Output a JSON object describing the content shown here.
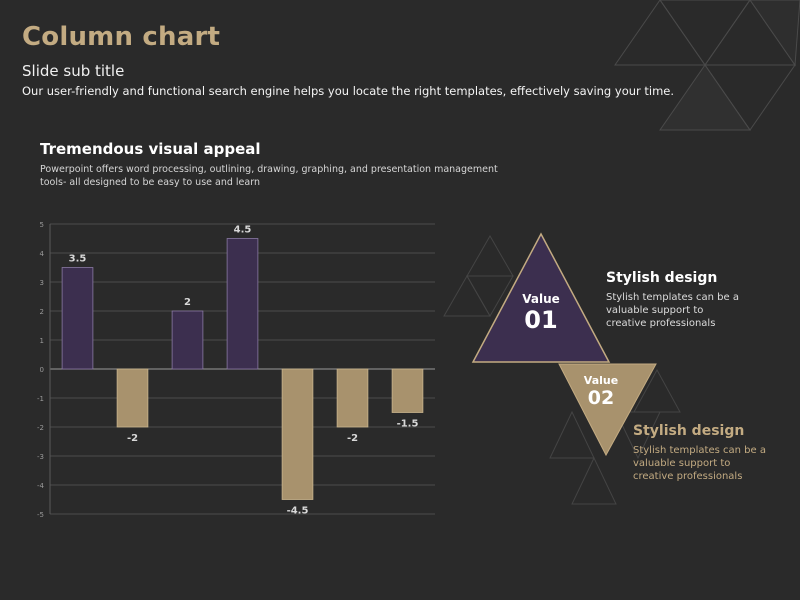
{
  "slide": {
    "title": "Column chart",
    "subtitle": "Slide sub title",
    "intro": "Our user-friendly and functional search engine helps you locate the right templates, effectively saving your time."
  },
  "section": {
    "heading": "Tremendous visual appeal",
    "body": "Powerpoint offers word processing, outlining, drawing, graphing, and presentation management tools- all designed to be easy to use and learn"
  },
  "colors": {
    "background": "#2a2a2a",
    "positive_bar": "#3c2f4f",
    "negative_bar": "#a8926d",
    "gold": "#c3ab82"
  },
  "chart_data": {
    "type": "bar",
    "title": "",
    "xlabel": "",
    "ylabel": "",
    "categories": [
      "",
      "",
      "",
      "",
      "",
      "",
      ""
    ],
    "values": [
      3.5,
      -2,
      2,
      4.5,
      -4.5,
      -2,
      -1.5
    ],
    "labels": [
      "3.5",
      "-2",
      "2",
      "4.5",
      "-4.5",
      "-2",
      "-1.5"
    ],
    "ylim": [
      -5,
      5
    ],
    "yticks": [
      -5,
      -4,
      -3,
      -2,
      -1,
      0,
      1,
      2,
      3,
      4,
      5
    ],
    "grid": true,
    "legend": "none"
  },
  "infos": [
    {
      "value_key": "Value",
      "value_num": "01",
      "heading": "Stylish design",
      "body": "Stylish templates can be a valuable support to creative professionals"
    },
    {
      "value_key": "Value",
      "value_num": "02",
      "heading": "Stylish design",
      "body": "Stylish templates can be a valuable support to creative professionals"
    }
  ]
}
